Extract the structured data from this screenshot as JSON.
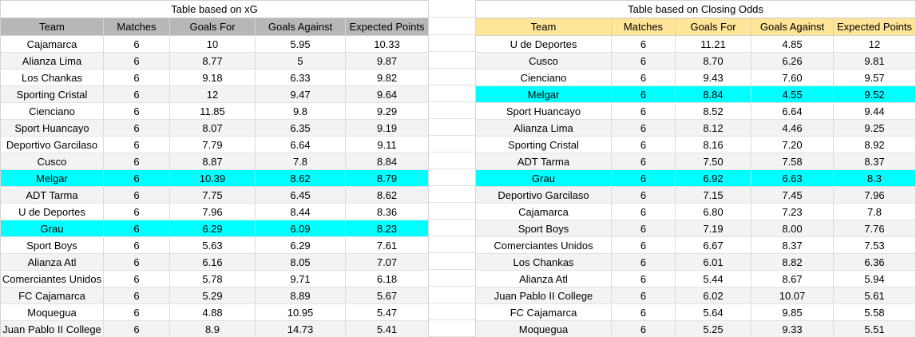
{
  "xg_table": {
    "title": "Table based on xG",
    "columns": [
      "Team",
      "Matches",
      "Goals For",
      "Goals Against",
      "Expected Points"
    ],
    "rows": [
      [
        "Cajamarca",
        "6",
        "10",
        "5.95",
        "10.33"
      ],
      [
        "Alianza Lima",
        "6",
        "8.77",
        "5",
        "9.87"
      ],
      [
        "Los Chankas",
        "6",
        "9.18",
        "6.33",
        "9.82"
      ],
      [
        "Sporting Cristal",
        "6",
        "12",
        "9.47",
        "9.64"
      ],
      [
        "Cienciano",
        "6",
        "11.85",
        "9.8",
        "9.29"
      ],
      [
        "Sport Huancayo",
        "6",
        "8.07",
        "6.35",
        "9.19"
      ],
      [
        "Deportivo Garcilaso",
        "6",
        "7.79",
        "6.64",
        "9.11"
      ],
      [
        "Cusco",
        "6",
        "8.87",
        "7.8",
        "8.84"
      ],
      [
        "Melgar",
        "6",
        "10.39",
        "8.62",
        "8.79"
      ],
      [
        "ADT Tarma",
        "6",
        "7.75",
        "6.45",
        "8.62"
      ],
      [
        "U de Deportes",
        "6",
        "7.96",
        "8.44",
        "8.36"
      ],
      [
        "Grau",
        "6",
        "6.29",
        "6.09",
        "8.23"
      ],
      [
        "Sport Boys",
        "6",
        "5.63",
        "6.29",
        "7.61"
      ],
      [
        "Alianza Atl",
        "6",
        "6.16",
        "8.05",
        "7.07"
      ],
      [
        "Comerciantes Unidos",
        "6",
        "5.78",
        "9.71",
        "6.18"
      ],
      [
        "FC Cajamarca",
        "6",
        "5.29",
        "8.89",
        "5.67"
      ],
      [
        "Moquegua",
        "6",
        "4.88",
        "10.95",
        "5.47"
      ],
      [
        "Juan Pablo II College",
        "6",
        "8.9",
        "14.73",
        "5.41"
      ]
    ],
    "highlight_rows": [
      9,
      12
    ],
    "highlighted_teams": [
      "Melgar",
      "Grau"
    ]
  },
  "closing_odds_table": {
    "title": "Table based on Closing Odds",
    "columns": [
      "Team",
      "Matches",
      "Goals For",
      "Goals Against",
      "Expected Points"
    ],
    "rows": [
      [
        "U de Deportes",
        "6",
        "11.21",
        "4.85",
        "12"
      ],
      [
        "Cusco",
        "6",
        "8.70",
        "6.26",
        "9.81"
      ],
      [
        "Cienciano",
        "6",
        "9.43",
        "7.60",
        "9.57"
      ],
      [
        "Melgar",
        "6",
        "8.84",
        "4.55",
        "9.52"
      ],
      [
        "Sport Huancayo",
        "6",
        "8.52",
        "6.64",
        "9.44"
      ],
      [
        "Alianza Lima",
        "6",
        "8.12",
        "4.46",
        "9.25"
      ],
      [
        "Sporting Cristal",
        "6",
        "8.16",
        "7.20",
        "8.92"
      ],
      [
        "ADT Tarma",
        "6",
        "7.50",
        "7.58",
        "8.37"
      ],
      [
        "Grau",
        "6",
        "6.92",
        "6.63",
        "8.3"
      ],
      [
        "Deportivo Garcilaso",
        "6",
        "7.15",
        "7.45",
        "7.96"
      ],
      [
        "Cajamarca",
        "6",
        "6.80",
        "7.23",
        "7.8"
      ],
      [
        "Sport Boys",
        "6",
        "7.19",
        "8.00",
        "7.76"
      ],
      [
        "Comerciantes Unidos",
        "6",
        "6.67",
        "8.37",
        "7.53"
      ],
      [
        "Los Chankas",
        "6",
        "6.01",
        "8.82",
        "6.36"
      ],
      [
        "Alianza Atl",
        "6",
        "5.44",
        "8.67",
        "5.94"
      ],
      [
        "Juan Pablo II College",
        "6",
        "6.02",
        "10.07",
        "5.61"
      ],
      [
        "FC Cajamarca",
        "6",
        "5.64",
        "9.85",
        "5.58"
      ],
      [
        "Moquegua",
        "6",
        "5.25",
        "9.33",
        "5.51"
      ]
    ],
    "highlight_rows": [
      4,
      9
    ],
    "highlighted_teams": [
      "Melgar",
      "Grau"
    ]
  },
  "colors": {
    "xg_header_bg": "#b7b7b7",
    "odds_header_bg": "#ffe599",
    "highlight_bg": "#00ffff",
    "zebra_row_bg": "#f3f3f3",
    "gridline": "#d9d9d9",
    "text": "#000000"
  }
}
